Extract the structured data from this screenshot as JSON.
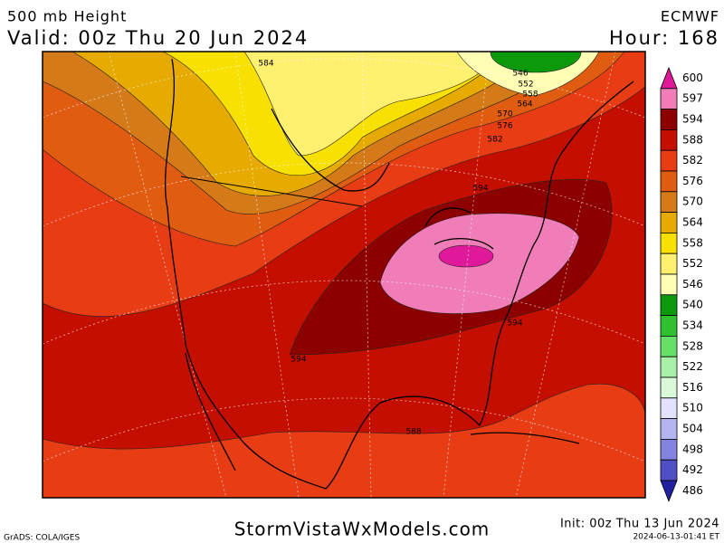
{
  "header": {
    "title": "500 mb Height",
    "valid": "Valid: 00z Thu 20 Jun 2024",
    "model": "ECMWF",
    "hour": "Hour: 168"
  },
  "colorbar": [
    {
      "value": 600,
      "color": "#e0189a"
    },
    {
      "value": 597,
      "color": "#f07cb8"
    },
    {
      "value": 594,
      "color": "#8c0000"
    },
    {
      "value": 588,
      "color": "#c40e00"
    },
    {
      "value": 582,
      "color": "#e83c14"
    },
    {
      "value": 576,
      "color": "#e05c10"
    },
    {
      "value": 570,
      "color": "#d47a18"
    },
    {
      "value": 564,
      "color": "#e6aa00"
    },
    {
      "value": 558,
      "color": "#f8e000"
    },
    {
      "value": 552,
      "color": "#fff070"
    },
    {
      "value": 546,
      "color": "#fffcb4"
    },
    {
      "value": 540,
      "color": "#0c9a0c"
    },
    {
      "value": 534,
      "color": "#30c030"
    },
    {
      "value": 528,
      "color": "#66e066"
    },
    {
      "value": 522,
      "color": "#a8f0a8"
    },
    {
      "value": 516,
      "color": "#d8f8d8"
    },
    {
      "value": 510,
      "color": "#e2e2ff"
    },
    {
      "value": 504,
      "color": "#b4b4f0"
    },
    {
      "value": 498,
      "color": "#8484e0"
    },
    {
      "value": 492,
      "color": "#5050c4"
    },
    {
      "value": 486,
      "color": "#2020a0"
    }
  ],
  "contour_labels": [
    "584",
    "546",
    "552",
    "558",
    "564",
    "570",
    "576",
    "582",
    "594",
    "594",
    "594",
    "588"
  ],
  "footer": {
    "credit": "GrADS: COLA/IGES",
    "site": "StormVistaWxModels.com",
    "init": "Init: 00z Thu 13 Jun 2024",
    "timestamp": "2024-06-13-01:41 ET"
  }
}
